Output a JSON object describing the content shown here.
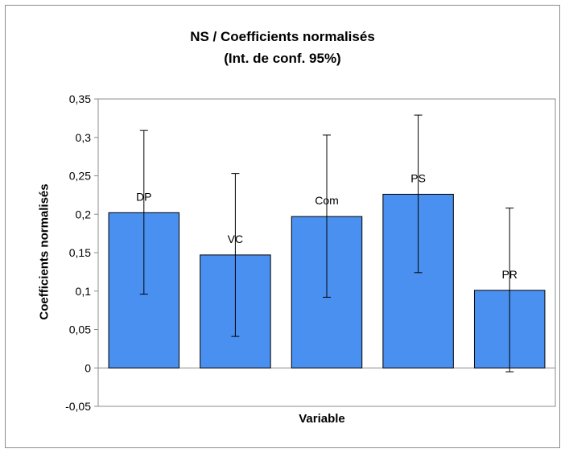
{
  "chart_data": {
    "type": "bar",
    "title": "NS / Coefficients normalisés",
    "subtitle": "(Int. de conf. 95%)",
    "xlabel": "Variable",
    "ylabel": "Coefficients normalisés",
    "categories": [
      "DP",
      "VC",
      "Com",
      "PS",
      "PR"
    ],
    "values": [
      0.202,
      0.147,
      0.197,
      0.226,
      0.101
    ],
    "error_low": [
      0.096,
      0.041,
      0.092,
      0.124,
      -0.005
    ],
    "error_high": [
      0.309,
      0.253,
      0.303,
      0.329,
      0.208
    ],
    "ylim": [
      -0.05,
      0.35
    ],
    "yticks": [
      -0.05,
      0,
      0.05,
      0.1,
      0.15,
      0.2,
      0.25,
      0.3,
      0.35
    ],
    "ytick_labels": [
      "-0,05",
      "0",
      "0,05",
      "0,1",
      "0,15",
      "0,2",
      "0,25",
      "0,3",
      "0,35"
    ],
    "bar_color": "#4a90f0",
    "grid": false,
    "legend": "none"
  }
}
